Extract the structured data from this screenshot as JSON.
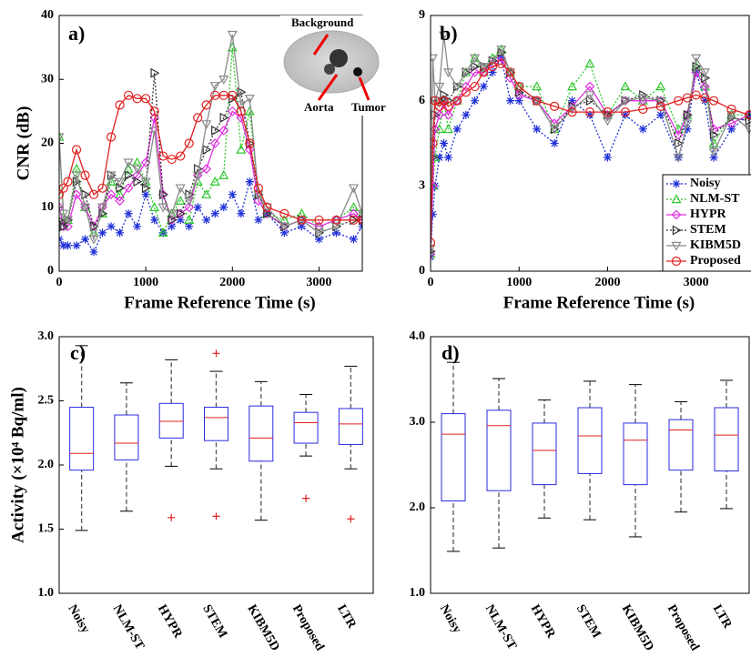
{
  "chart_data": [
    {
      "type": "line",
      "title": "a)",
      "x_label": "Frame Reference Time (s)",
      "y_label": "CNR (dB)",
      "annotations": [
        "Background",
        "Aorta",
        "Tumor"
      ],
      "xlim": [
        0,
        3500
      ],
      "xticks": [
        0,
        1000,
        2000,
        3000
      ],
      "ylim": [
        0,
        40
      ],
      "yticks": [
        0,
        10,
        20,
        30,
        40
      ],
      "x": [
        0,
        50,
        100,
        200,
        300,
        400,
        500,
        600,
        700,
        800,
        900,
        1000,
        1100,
        1200,
        1300,
        1400,
        1500,
        1600,
        1700,
        1800,
        1900,
        2000,
        2100,
        2200,
        2300,
        2400,
        2600,
        2800,
        3000,
        3200,
        3400,
        3500
      ],
      "series": [
        {
          "name": "Noisy",
          "color": "#1f2fd6",
          "marker": "star",
          "linestyle": "dotted",
          "values": [
            5,
            4,
            4,
            4,
            5,
            3,
            6,
            7,
            6,
            9,
            7,
            12,
            8,
            6,
            7,
            8,
            7,
            10,
            8,
            9,
            10,
            12,
            9,
            14,
            8,
            9,
            6,
            7,
            5,
            6,
            5,
            7
          ]
        },
        {
          "name": "NLM-ST",
          "color": "#2ec82e",
          "marker": "triangle-up",
          "linestyle": "dotted",
          "values": [
            21,
            7,
            8,
            16,
            10,
            6,
            9,
            14,
            12,
            16,
            17,
            14,
            10,
            6,
            9,
            11,
            8,
            14,
            12,
            14,
            15,
            35,
            19,
            25,
            12,
            9,
            8,
            9,
            7,
            8,
            10,
            9
          ]
        },
        {
          "name": "HYPR",
          "color": "#e030e0",
          "marker": "diamond",
          "linestyle": "solid",
          "values": [
            10,
            7,
            7,
            12,
            10,
            7,
            10,
            12,
            11,
            13,
            15,
            17,
            24,
            12,
            8,
            9,
            10,
            15,
            16,
            20,
            22,
            25,
            24,
            19,
            11,
            9,
            7,
            8,
            7,
            8,
            9,
            8
          ]
        },
        {
          "name": "STEM",
          "color": "#333333",
          "marker": "triangle-right",
          "linestyle": "dotted",
          "values": [
            8,
            7,
            8,
            14,
            12,
            7,
            9,
            15,
            13,
            15,
            14,
            13,
            31,
            12,
            8,
            9,
            12,
            16,
            19,
            22,
            24,
            27,
            28,
            20,
            12,
            9,
            7,
            8,
            6,
            7,
            8,
            8
          ]
        },
        {
          "name": "KIBM5D",
          "color": "#8a8a8a",
          "marker": "triangle-down",
          "linestyle": "solid",
          "values": [
            21,
            9,
            8,
            15,
            10,
            5,
            10,
            15,
            14,
            17,
            16,
            14,
            22,
            10,
            9,
            13,
            11,
            15,
            23,
            29,
            30,
            37,
            26,
            27,
            12,
            10,
            7,
            8,
            6,
            7,
            13,
            9
          ]
        },
        {
          "name": "Proposed",
          "color": "#e02020",
          "marker": "circle",
          "linestyle": "solid",
          "values": [
            12,
            13,
            14,
            19,
            15,
            12,
            13,
            21,
            26,
            27.5,
            27,
            27,
            25,
            18,
            17.5,
            18,
            20,
            24,
            26,
            27.5,
            27.5,
            27.5,
            25,
            20,
            13,
            10,
            9,
            8,
            8,
            8,
            8,
            8
          ]
        }
      ]
    },
    {
      "type": "line",
      "title": "b)",
      "x_label": "Frame Reference Time (s)",
      "legend": "lower right",
      "xlim": [
        0,
        3600
      ],
      "xticks": [
        0,
        1000,
        2000,
        3000
      ],
      "ylim": [
        0,
        9
      ],
      "yticks": [
        0,
        3,
        6,
        9
      ],
      "x": [
        0,
        25,
        50,
        100,
        150,
        200,
        300,
        400,
        500,
        600,
        700,
        800,
        900,
        1000,
        1200,
        1400,
        1600,
        1800,
        2000,
        2200,
        2400,
        2600,
        2800,
        2900,
        3000,
        3100,
        3200,
        3400,
        3600
      ],
      "series": [
        {
          "name": "Noisy",
          "color": "#1f2fd6",
          "marker": "star",
          "linestyle": "dotted",
          "values": [
            0.5,
            2,
            3,
            4,
            4.5,
            4,
            5,
            5.5,
            6,
            6.5,
            7,
            7.5,
            6,
            6,
            5,
            4.5,
            6,
            5.5,
            4,
            5.5,
            5,
            5.5,
            4,
            5,
            7,
            6,
            4,
            5,
            5.5
          ]
        },
        {
          "name": "NLM-ST",
          "color": "#2ec82e",
          "marker": "triangle-up",
          "linestyle": "dotted",
          "values": [
            0.6,
            3,
            4,
            5,
            6,
            5,
            6,
            7,
            7.5,
            7,
            7.5,
            7.8,
            7,
            6.5,
            6.5,
            5,
            6.5,
            7.3,
            5.5,
            6.5,
            6,
            6.5,
            5,
            5.5,
            7.2,
            6.5,
            4.5,
            5.5,
            5.5
          ]
        },
        {
          "name": "HYPR",
          "color": "#e030e0",
          "marker": "diamond",
          "linestyle": "solid",
          "values": [
            0.6,
            3,
            5,
            5.5,
            6,
            5.5,
            6,
            6.5,
            7,
            7,
            7.3,
            7.5,
            6.8,
            6.2,
            6,
            5.2,
            5.8,
            6.5,
            5.5,
            6,
            6,
            6,
            4.8,
            5.5,
            7,
            6.5,
            5,
            5.2,
            5.5
          ]
        },
        {
          "name": "STEM",
          "color": "#333333",
          "marker": "triangle-right",
          "linestyle": "dotted",
          "values": [
            0.7,
            4,
            5.5,
            6,
            6.2,
            6,
            6.5,
            7,
            7.2,
            7.2,
            7.4,
            7.7,
            7,
            6.3,
            6,
            5,
            5.8,
            6,
            5.5,
            6,
            6.2,
            6,
            4.5,
            5.5,
            7.2,
            6.8,
            4.8,
            5.4,
            5.3
          ]
        },
        {
          "name": "KIBM5D",
          "color": "#8a8a8a",
          "marker": "triangle-down",
          "linestyle": "solid",
          "values": [
            0.8,
            7.5,
            6,
            6.5,
            8.3,
            7,
            6.5,
            7,
            7.5,
            7.2,
            7.4,
            7.8,
            7,
            6.5,
            6,
            5,
            5.7,
            6.2,
            5.3,
            6,
            6.1,
            6,
            4,
            5.2,
            7.5,
            7,
            4.2,
            5.5,
            5
          ]
        },
        {
          "name": "Proposed",
          "color": "#e02020",
          "marker": "circle",
          "linestyle": "solid",
          "values": [
            1,
            4.5,
            6,
            5.8,
            6,
            5.8,
            6,
            6.3,
            6.5,
            7,
            7.2,
            7.3,
            7,
            6.5,
            6,
            5.8,
            5.6,
            5.6,
            5.6,
            5.6,
            5.7,
            5.8,
            6,
            6.1,
            6.2,
            6.1,
            6,
            5.7,
            5.5
          ]
        }
      ]
    },
    {
      "type": "box",
      "title": "c)",
      "y_label": "Activity (×10⁴ Bq/ml)",
      "ylim": [
        1,
        3
      ],
      "yticks": [
        {
          "value": 1,
          "label": "1.0"
        },
        {
          "value": 1.5,
          "label": "1.5"
        },
        {
          "value": 2,
          "label": "2.0"
        },
        {
          "value": 2.5,
          "label": "2.5"
        },
        {
          "value": 3,
          "label": "3.0"
        }
      ],
      "box_color": "#2a2ae0",
      "median_color": "#e02020",
      "whisker_color": "#555555",
      "flier_color": "#e02020",
      "categories": [
        "Noisy",
        "NLM-ST",
        "HYPR",
        "STEM",
        "KIBM5D",
        "Proposed",
        "LTR"
      ],
      "boxes": [
        {
          "whislo": 1.49,
          "q1": 1.96,
          "med": 2.09,
          "q3": 2.45,
          "whishi": 2.93,
          "fliers": []
        },
        {
          "whislo": 1.64,
          "q1": 2.04,
          "med": 2.17,
          "q3": 2.39,
          "whishi": 2.64,
          "fliers": []
        },
        {
          "whislo": 1.99,
          "q1": 2.21,
          "med": 2.34,
          "q3": 2.48,
          "whishi": 2.82,
          "fliers": [
            1.59
          ]
        },
        {
          "whislo": 1.97,
          "q1": 2.19,
          "med": 2.37,
          "q3": 2.45,
          "whishi": 2.73,
          "fliers": [
            2.87,
            1.6
          ]
        },
        {
          "whislo": 1.57,
          "q1": 2.03,
          "med": 2.21,
          "q3": 2.46,
          "whishi": 2.65,
          "fliers": []
        },
        {
          "whislo": 2.07,
          "q1": 2.17,
          "med": 2.33,
          "q3": 2.41,
          "whishi": 2.55,
          "fliers": [
            1.74
          ]
        },
        {
          "whislo": 1.97,
          "q1": 2.16,
          "med": 2.32,
          "q3": 2.44,
          "whishi": 2.77,
          "fliers": [
            1.58
          ]
        }
      ]
    },
    {
      "type": "box",
      "title": "d)",
      "ylim": [
        1,
        4
      ],
      "yticks": [
        {
          "value": 1,
          "label": "1.0"
        },
        {
          "value": 2,
          "label": "2.0"
        },
        {
          "value": 3,
          "label": "3.0"
        },
        {
          "value": 4,
          "label": "4.0"
        }
      ],
      "box_color": "#2a2ae0",
      "median_color": "#e02020",
      "whisker_color": "#555555",
      "flier_color": "#e02020",
      "categories": [
        "Noisy",
        "NLM-ST",
        "HYPR",
        "STEM",
        "KIBM5D",
        "Proposed",
        "LTR"
      ],
      "boxes": [
        {
          "whislo": 1.49,
          "q1": 2.08,
          "med": 2.86,
          "q3": 3.1,
          "whishi": 3.7,
          "fliers": []
        },
        {
          "whislo": 1.53,
          "q1": 2.2,
          "med": 2.96,
          "q3": 3.14,
          "whishi": 3.51,
          "fliers": []
        },
        {
          "whislo": 1.88,
          "q1": 2.27,
          "med": 2.67,
          "q3": 2.99,
          "whishi": 3.26,
          "fliers": []
        },
        {
          "whislo": 1.86,
          "q1": 2.4,
          "med": 2.84,
          "q3": 3.17,
          "whishi": 3.48,
          "fliers": []
        },
        {
          "whislo": 1.66,
          "q1": 2.27,
          "med": 2.79,
          "q3": 2.99,
          "whishi": 3.44,
          "fliers": []
        },
        {
          "whislo": 1.95,
          "q1": 2.44,
          "med": 2.91,
          "q3": 3.03,
          "whishi": 3.24,
          "fliers": []
        },
        {
          "whislo": 1.99,
          "q1": 2.43,
          "med": 2.85,
          "q3": 3.17,
          "whishi": 3.49,
          "fliers": []
        }
      ]
    }
  ]
}
